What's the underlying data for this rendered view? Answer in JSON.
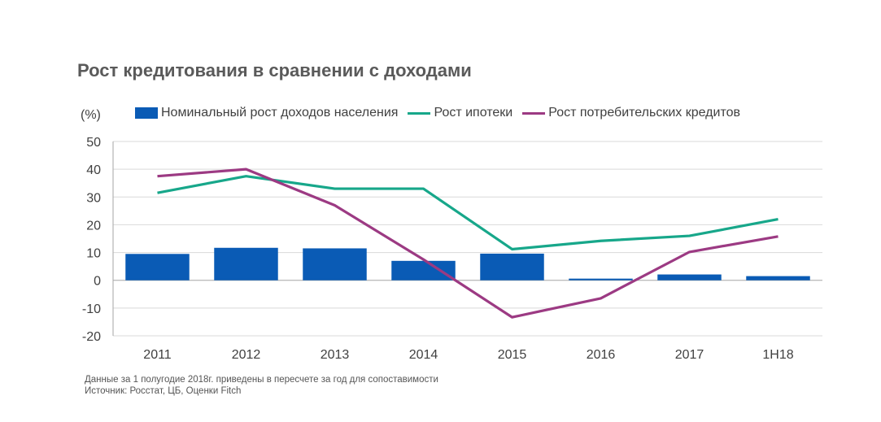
{
  "title": "Рост кредитования в сравнении с доходами",
  "unit_label": "(%)",
  "colors": {
    "bars": "#0a5bb5",
    "mortgage": "#17a78a",
    "consumer": "#9c3a83",
    "grid": "#d9d9d9",
    "axis": "#a6a6a6",
    "text": "#404040"
  },
  "chart_data": {
    "type": "bar",
    "categories": [
      "2011",
      "2012",
      "2013",
      "2014",
      "2015",
      "2016",
      "2017",
      "1H18"
    ],
    "ylim": [
      -20,
      50
    ],
    "yticks": [
      "50",
      "40",
      "30",
      "20",
      "10",
      "0",
      "-10",
      "-20"
    ],
    "ytick_values": [
      50,
      40,
      30,
      20,
      10,
      0,
      -10,
      -20
    ],
    "grid": true,
    "legend_position": "top",
    "series": [
      {
        "name": "Номинальный рост доходов населения",
        "kind": "bar",
        "values": [
          9.5,
          11.7,
          11.5,
          7.0,
          9.6,
          0.6,
          2.1,
          1.5
        ]
      },
      {
        "name": "Рост ипотеки",
        "kind": "line",
        "values": [
          31.5,
          37.5,
          33.0,
          33.0,
          11.2,
          14.2,
          16.0,
          22.0
        ]
      },
      {
        "name": "Рост потребительских кредитов",
        "kind": "line",
        "values": [
          37.5,
          40.0,
          27.0,
          7.5,
          -13.3,
          -6.5,
          10.2,
          15.8
        ]
      }
    ]
  },
  "notes": [
    "Данные за 1 полугодие 2018г. приведены в пересчете за год для сопоставимости",
    "Источник: Росстат, ЦБ, Оценки Fitch"
  ]
}
